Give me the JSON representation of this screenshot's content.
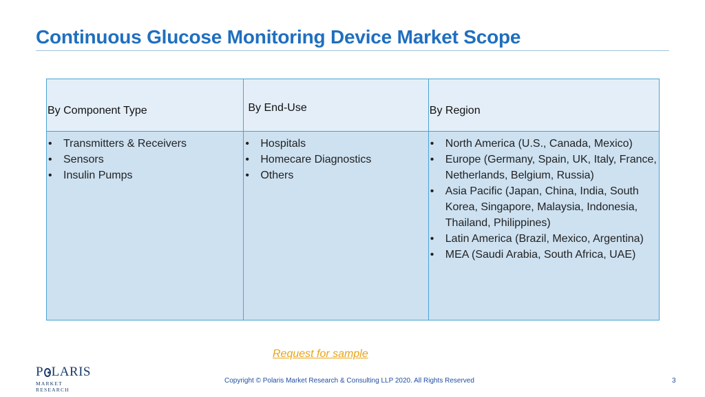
{
  "slide": {
    "title": "Continuous Glucose Monitoring Device Market Scope",
    "cta_label": "Request for sample",
    "copyright": "Copyright © Polaris Market Research & Consulting LLP 2020. All Rights Reserved",
    "page_number": "3"
  },
  "logo": {
    "line1_before": "P",
    "line1_after": "LARIS",
    "line2": "MARKET RESEARCH"
  },
  "table": {
    "headers": [
      "By Component Type",
      "By End-Use",
      "By Region"
    ],
    "bullet": "•",
    "columns": [
      [
        "Transmitters & Receivers",
        "Sensors",
        "Insulin Pumps"
      ],
      [
        "Hospitals",
        "Homecare Diagnostics",
        "Others"
      ],
      [
        "North America (U.S., Canada, Mexico)",
        "Europe (Germany, Spain, UK, Italy, France, Netherlands, Belgium, Russia)",
        "Asia Pacific (Japan, China, India, South Korea, Singapore, Malaysia, Indonesia, Thailand, Philippines)",
        "Latin America (Brazil, Mexico, Argentina)",
        "MEA (Saudi Arabia, South Africa, UAE)"
      ]
    ]
  }
}
